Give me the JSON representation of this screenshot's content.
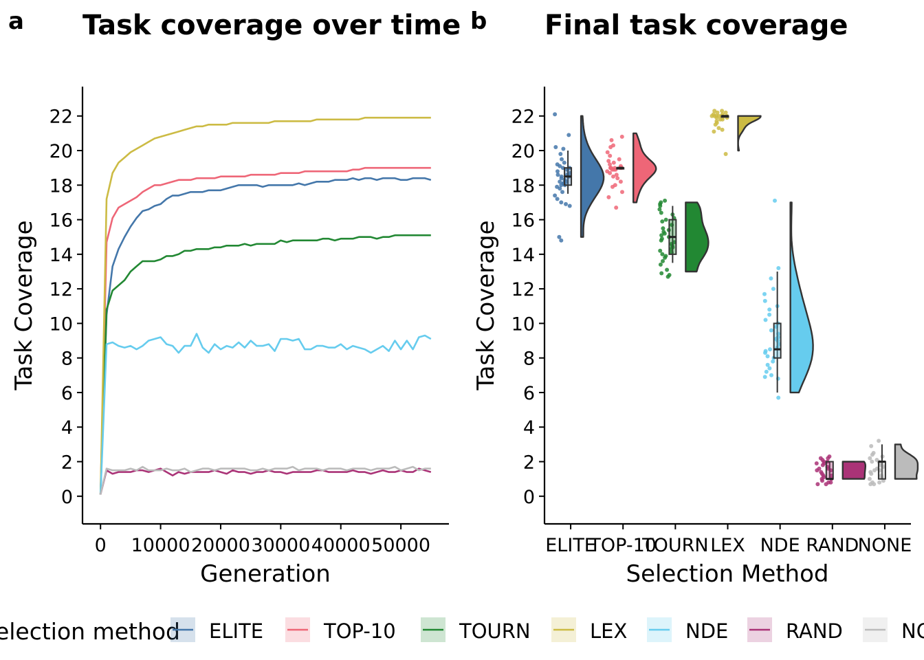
{
  "colors": {
    "ELITE": "#4477AA",
    "TOP-10": "#EE6677",
    "TOURN": "#228833",
    "LEX": "#CCBB44",
    "NDE": "#66CCEE",
    "RAND": "#AA3377",
    "NONE": "#BBBBBB"
  },
  "legend": {
    "title": "Selection method",
    "items": [
      "ELITE",
      "TOP-10",
      "TOURN",
      "LEX",
      "NDE",
      "RAND",
      "NONE"
    ]
  },
  "chart_data": [
    {
      "panel": "a",
      "type": "line",
      "title": "Task coverage over time",
      "xlabel": "Generation",
      "ylabel": "Task Coverage",
      "xlim": [
        -3000,
        58000
      ],
      "ylim": [
        -1.6,
        23.7
      ],
      "xticks": [
        0,
        10000,
        20000,
        30000,
        40000,
        50000
      ],
      "yticks": [
        0,
        2,
        4,
        6,
        8,
        10,
        12,
        14,
        16,
        18,
        20,
        22
      ],
      "x": [
        0,
        1000,
        2000,
        3000,
        4000,
        5000,
        6000,
        7000,
        8000,
        9000,
        10000,
        11000,
        12000,
        13000,
        14000,
        15000,
        16000,
        17000,
        18000,
        19000,
        20000,
        21000,
        22000,
        23000,
        24000,
        25000,
        26000,
        27000,
        28000,
        29000,
        30000,
        31000,
        32000,
        33000,
        34000,
        35000,
        36000,
        37000,
        38000,
        39000,
        40000,
        41000,
        42000,
        43000,
        44000,
        45000,
        46000,
        47000,
        48000,
        49000,
        50000,
        51000,
        52000,
        53000,
        54000,
        55000
      ],
      "series": [
        {
          "name": "ELITE",
          "values": [
            0.1,
            10.5,
            13.3,
            14.3,
            15.0,
            15.6,
            16.1,
            16.5,
            16.6,
            16.8,
            16.9,
            17.2,
            17.4,
            17.4,
            17.5,
            17.6,
            17.6,
            17.6,
            17.7,
            17.7,
            17.7,
            17.8,
            17.9,
            18.0,
            18.0,
            18.0,
            18.0,
            17.9,
            18.0,
            18.0,
            18.0,
            18.0,
            18.0,
            18.1,
            18.0,
            18.1,
            18.2,
            18.2,
            18.2,
            18.3,
            18.3,
            18.3,
            18.4,
            18.3,
            18.4,
            18.4,
            18.3,
            18.4,
            18.4,
            18.4,
            18.3,
            18.3,
            18.4,
            18.4,
            18.4,
            18.3
          ]
        },
        {
          "name": "TOP-10",
          "values": [
            0.1,
            14.7,
            16.1,
            16.7,
            16.9,
            17.1,
            17.3,
            17.6,
            17.8,
            18.0,
            18.0,
            18.1,
            18.2,
            18.3,
            18.3,
            18.3,
            18.4,
            18.4,
            18.4,
            18.4,
            18.5,
            18.5,
            18.5,
            18.5,
            18.5,
            18.6,
            18.6,
            18.6,
            18.6,
            18.6,
            18.7,
            18.7,
            18.7,
            18.7,
            18.8,
            18.8,
            18.8,
            18.8,
            18.8,
            18.8,
            18.8,
            18.8,
            18.9,
            18.9,
            19.0,
            19.0,
            19.0,
            19.0,
            19.0,
            19.0,
            19.0,
            19.0,
            19.0,
            19.0,
            19.0,
            19.0
          ]
        },
        {
          "name": "TOURN",
          "values": [
            0.1,
            10.8,
            11.9,
            12.2,
            12.5,
            13.0,
            13.3,
            13.6,
            13.6,
            13.6,
            13.7,
            13.9,
            13.9,
            14.0,
            14.2,
            14.2,
            14.3,
            14.3,
            14.3,
            14.4,
            14.4,
            14.5,
            14.5,
            14.5,
            14.6,
            14.5,
            14.6,
            14.6,
            14.6,
            14.6,
            14.8,
            14.7,
            14.8,
            14.8,
            14.8,
            14.8,
            14.8,
            14.9,
            14.9,
            14.8,
            14.9,
            14.9,
            14.9,
            15.0,
            15.0,
            15.0,
            14.9,
            15.0,
            15.0,
            15.1,
            15.1,
            15.1,
            15.1,
            15.1,
            15.1,
            15.1
          ]
        },
        {
          "name": "LEX",
          "values": [
            0.1,
            17.2,
            18.7,
            19.3,
            19.6,
            19.9,
            20.1,
            20.3,
            20.5,
            20.7,
            20.8,
            20.9,
            21.0,
            21.1,
            21.2,
            21.3,
            21.4,
            21.4,
            21.5,
            21.5,
            21.5,
            21.5,
            21.6,
            21.6,
            21.6,
            21.6,
            21.6,
            21.6,
            21.6,
            21.7,
            21.7,
            21.7,
            21.7,
            21.7,
            21.7,
            21.7,
            21.8,
            21.8,
            21.8,
            21.8,
            21.8,
            21.8,
            21.8,
            21.8,
            21.9,
            21.9,
            21.9,
            21.9,
            21.9,
            21.9,
            21.9,
            21.9,
            21.9,
            21.9,
            21.9,
            21.9
          ]
        },
        {
          "name": "NDE",
          "values": [
            0.1,
            8.8,
            8.9,
            8.7,
            8.6,
            8.7,
            8.5,
            8.7,
            9.0,
            9.1,
            9.2,
            8.8,
            8.7,
            8.3,
            8.7,
            8.7,
            9.4,
            8.6,
            8.3,
            8.8,
            8.5,
            8.7,
            8.6,
            8.9,
            8.6,
            9.0,
            8.7,
            8.7,
            8.8,
            8.4,
            9.1,
            9.1,
            9.0,
            9.1,
            8.5,
            8.5,
            8.7,
            8.7,
            8.6,
            8.6,
            8.8,
            8.5,
            8.7,
            8.6,
            8.5,
            8.3,
            8.5,
            8.7,
            8.4,
            9.0,
            8.5,
            9.0,
            8.5,
            9.2,
            9.3,
            9.1
          ]
        },
        {
          "name": "RAND",
          "values": [
            0.1,
            1.5,
            1.3,
            1.4,
            1.4,
            1.4,
            1.5,
            1.5,
            1.4,
            1.5,
            1.6,
            1.4,
            1.2,
            1.4,
            1.3,
            1.4,
            1.4,
            1.4,
            1.4,
            1.5,
            1.4,
            1.3,
            1.5,
            1.4,
            1.4,
            1.3,
            1.4,
            1.4,
            1.5,
            1.4,
            1.4,
            1.3,
            1.4,
            1.4,
            1.4,
            1.4,
            1.5,
            1.5,
            1.4,
            1.4,
            1.4,
            1.4,
            1.5,
            1.4,
            1.4,
            1.3,
            1.4,
            1.5,
            1.4,
            1.4,
            1.5,
            1.4,
            1.4,
            1.6,
            1.5,
            1.4
          ]
        },
        {
          "name": "NONE",
          "values": [
            0.1,
            1.6,
            1.5,
            1.5,
            1.5,
            1.6,
            1.5,
            1.7,
            1.5,
            1.5,
            1.5,
            1.6,
            1.5,
            1.5,
            1.6,
            1.4,
            1.5,
            1.6,
            1.6,
            1.5,
            1.6,
            1.6,
            1.6,
            1.6,
            1.6,
            1.5,
            1.5,
            1.6,
            1.5,
            1.6,
            1.6,
            1.6,
            1.7,
            1.5,
            1.6,
            1.6,
            1.6,
            1.5,
            1.6,
            1.6,
            1.6,
            1.5,
            1.6,
            1.6,
            1.6,
            1.5,
            1.6,
            1.6,
            1.6,
            1.7,
            1.5,
            1.6,
            1.7,
            1.5,
            1.6,
            1.6
          ]
        }
      ]
    },
    {
      "panel": "b",
      "type": "raincloud",
      "title": "Final task coverage",
      "xlabel": "Selection Method",
      "ylabel": "Task Coverage",
      "ylim": [
        -1.6,
        23.7
      ],
      "yticks": [
        0,
        2,
        4,
        6,
        8,
        10,
        12,
        14,
        16,
        18,
        20,
        22
      ],
      "categories": [
        "ELITE",
        "TOP-10",
        "TOURN",
        "LEX",
        "NDE",
        "RAND",
        "NONE"
      ],
      "box": [
        {
          "min": 17.5,
          "q1": 18.0,
          "median": 18.5,
          "q3": 19.0,
          "max": 20.0
        },
        {
          "min": 19.0,
          "q1": 19.0,
          "median": 19.0,
          "q3": 19.0,
          "max": 19.0
        },
        {
          "min": 13.5,
          "q1": 14.0,
          "median": 15.0,
          "q3": 16.0,
          "max": 16.8
        },
        {
          "min": 22.0,
          "q1": 22.0,
          "median": 22.0,
          "q3": 22.0,
          "max": 22.0
        },
        {
          "min": 6.0,
          "q1": 8.0,
          "median": 8.5,
          "q3": 10.0,
          "max": 13.0
        },
        {
          "min": 1.0,
          "q1": 1.0,
          "median": 1.0,
          "q3": 2.0,
          "max": 2.0
        },
        {
          "min": 1.0,
          "q1": 1.0,
          "median": 2.0,
          "q3": 2.0,
          "max": 3.0
        }
      ],
      "violin_range": [
        [
          15.0,
          22.0
        ],
        [
          17.0,
          21.0
        ],
        [
          13.0,
          17.0
        ],
        [
          20.0,
          22.0
        ],
        [
          6.0,
          17.0
        ],
        [
          1.0,
          2.0
        ],
        [
          1.0,
          3.0
        ]
      ],
      "points": [
        [
          22.1,
          20.9,
          20.2,
          20.1,
          19.8,
          19.5,
          19.3,
          19.2,
          19.1,
          19.0,
          19.0,
          18.9,
          18.8,
          18.7,
          18.6,
          18.5,
          18.5,
          18.4,
          18.3,
          18.2,
          18.2,
          18.1,
          18.0,
          18.0,
          17.9,
          17.8,
          17.6,
          17.4,
          17.2,
          17.0,
          16.8,
          16.9,
          15.0,
          14.8,
          18.6,
          18.1
        ],
        [
          20.8,
          20.6,
          20.3,
          20.2,
          19.9,
          19.7,
          19.5,
          19.4,
          19.3,
          19.2,
          19.1,
          19.0,
          19.0,
          19.0,
          18.9,
          18.9,
          18.8,
          18.7,
          18.6,
          18.5,
          18.4,
          18.2,
          18.0,
          17.9,
          17.6,
          17.3,
          16.7,
          19.0,
          19.0,
          18.9
        ],
        [
          17.1,
          17.0,
          16.9,
          16.8,
          16.6,
          16.4,
          16.3,
          16.1,
          16.0,
          15.9,
          15.7,
          15.5,
          15.4,
          15.2,
          15.1,
          15.0,
          14.9,
          14.8,
          14.7,
          14.5,
          14.4,
          14.3,
          14.2,
          14.1,
          14.0,
          13.9,
          13.8,
          13.6,
          13.4,
          13.1,
          12.9,
          12.8,
          12.7,
          15.3,
          14.6
        ],
        [
          22.3,
          22.3,
          22.2,
          22.2,
          22.1,
          22.1,
          22.0,
          22.0,
          22.0,
          22.0,
          22.0,
          21.9,
          21.9,
          21.8,
          21.8,
          21.7,
          21.6,
          21.5,
          21.3,
          21.2,
          21.1,
          19.8,
          22.0,
          22.0,
          21.9
        ],
        [
          17.1,
          13.2,
          12.6,
          12.0,
          11.7,
          11.3,
          11.0,
          10.8,
          10.5,
          10.2,
          10.0,
          9.8,
          9.6,
          9.4,
          9.2,
          9.0,
          8.8,
          8.6,
          8.5,
          8.3,
          8.1,
          8.0,
          7.8,
          7.6,
          7.4,
          7.2,
          7.0,
          6.9,
          6.8,
          5.7,
          8.4,
          9.1
        ],
        [
          2.3,
          2.2,
          2.2,
          2.1,
          2.0,
          1.9,
          1.9,
          1.8,
          1.7,
          1.6,
          1.5,
          1.5,
          1.4,
          1.3,
          1.2,
          1.1,
          1.0,
          1.0,
          0.9,
          0.8,
          0.8,
          0.7,
          0.7,
          1.6,
          1.2,
          2.0
        ],
        [
          3.2,
          2.9,
          2.5,
          2.4,
          2.3,
          2.2,
          2.1,
          2.0,
          1.9,
          1.8,
          1.7,
          1.6,
          1.5,
          1.4,
          1.3,
          1.2,
          1.1,
          1.0,
          0.9,
          0.8,
          0.8,
          0.7,
          0.7,
          1.5,
          2.0
        ]
      ]
    }
  ],
  "panel_labels": {
    "a": "a",
    "b": "b"
  }
}
